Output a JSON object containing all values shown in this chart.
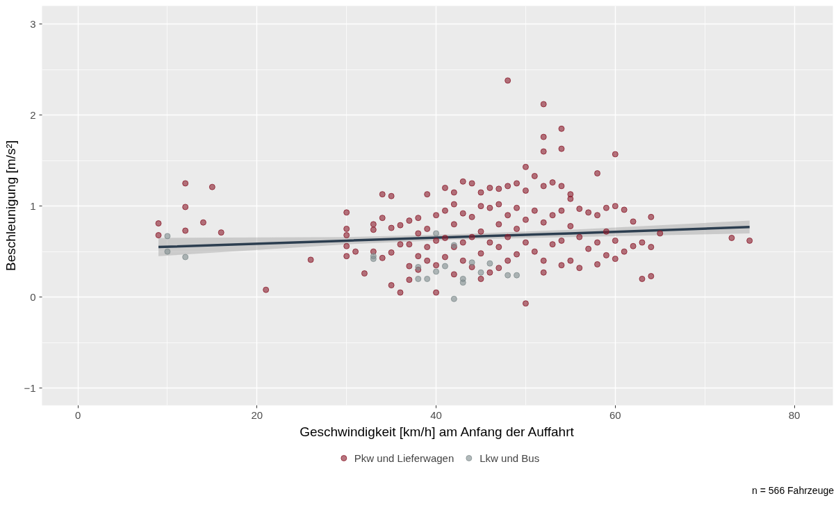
{
  "chart_data": {
    "type": "scatter",
    "xlabel": "Geschwindigkeit [km/h] am Anfang der Auffahrt",
    "ylabel": "Beschleunigung [m/s²]",
    "annotations": [
      "n = 566 Fahrzeuge"
    ],
    "xlim": [
      -4,
      84.3
    ],
    "ylim": [
      -1.19,
      3.2
    ],
    "xticks": [
      0,
      20,
      40,
      60,
      80
    ],
    "yticks": [
      -1,
      0,
      1,
      2,
      3
    ],
    "grid": true,
    "legend": "bottom",
    "marker": "circle",
    "series": [
      {
        "name": "Pkw und Lieferwagen",
        "color": "#8b1a2b",
        "x": [
          9,
          9,
          12,
          12,
          12,
          14,
          15,
          16,
          21,
          26,
          30,
          30,
          30,
          30,
          30,
          31,
          32,
          33,
          33,
          33,
          34,
          34,
          34,
          35,
          35,
          35,
          35,
          36,
          36,
          36,
          37,
          37,
          37,
          37,
          38,
          38,
          38,
          38,
          39,
          39,
          39,
          39,
          40,
          40,
          40,
          40,
          41,
          41,
          41,
          41,
          42,
          42,
          42,
          42,
          42,
          43,
          43,
          43,
          43,
          44,
          44,
          44,
          44,
          45,
          45,
          45,
          45,
          45,
          46,
          46,
          46,
          46,
          47,
          47,
          47,
          47,
          47,
          48,
          48,
          48,
          48,
          48,
          49,
          49,
          49,
          49,
          50,
          50,
          50,
          50,
          50,
          51,
          51,
          51,
          52,
          52,
          52,
          52,
          52,
          52,
          52,
          53,
          53,
          53,
          54,
          54,
          54,
          54,
          54,
          54,
          55,
          55,
          55,
          55,
          56,
          56,
          56,
          57,
          57,
          58,
          58,
          58,
          58,
          59,
          59,
          59,
          60,
          60,
          60,
          60,
          61,
          61,
          62,
          62,
          63,
          63,
          64,
          64,
          64,
          65,
          73,
          75
        ],
        "values": [
          0.81,
          0.68,
          1.25,
          0.99,
          0.73,
          0.82,
          1.21,
          0.71,
          0.08,
          0.41,
          0.93,
          0.75,
          0.68,
          0.56,
          0.45,
          0.5,
          0.26,
          0.8,
          0.74,
          0.5,
          0.87,
          0.43,
          1.13,
          1.11,
          0.76,
          0.49,
          0.13,
          0.05,
          0.58,
          0.79,
          0.84,
          0.58,
          0.34,
          0.19,
          0.87,
          0.7,
          0.45,
          0.3,
          1.13,
          0.75,
          0.55,
          0.4,
          0.05,
          0.9,
          0.62,
          0.35,
          1.2,
          0.95,
          0.65,
          0.44,
          1.15,
          1.02,
          0.8,
          0.55,
          0.25,
          1.27,
          0.92,
          0.6,
          0.4,
          1.25,
          0.88,
          0.66,
          0.33,
          1.15,
          1.0,
          0.72,
          0.48,
          0.2,
          1.2,
          0.98,
          0.6,
          0.27,
          1.19,
          1.02,
          0.8,
          0.55,
          0.32,
          2.38,
          1.22,
          0.9,
          0.66,
          0.4,
          1.25,
          0.98,
          0.75,
          0.47,
          1.43,
          1.17,
          0.85,
          0.6,
          -0.07,
          1.33,
          0.95,
          0.5,
          2.12,
          1.76,
          1.6,
          1.22,
          0.82,
          0.4,
          0.27,
          1.26,
          0.9,
          0.58,
          1.85,
          1.63,
          1.22,
          0.95,
          0.62,
          0.35,
          1.13,
          1.08,
          0.78,
          0.4,
          0.97,
          0.66,
          0.32,
          0.93,
          0.53,
          1.36,
          0.9,
          0.6,
          0.36,
          0.98,
          0.72,
          0.46,
          1.57,
          1.0,
          0.62,
          0.42,
          0.96,
          0.5,
          0.83,
          0.56,
          0.2,
          0.6,
          0.88,
          0.55,
          0.23,
          0.7,
          0.65,
          0.62
        ]
      },
      {
        "name": "Lkw und Bus",
        "color": "#7f8c8d",
        "x": [
          10,
          10,
          12,
          33,
          33,
          38,
          38,
          39,
          40,
          41,
          42,
          43,
          43,
          42,
          44,
          45,
          46,
          48,
          49,
          40
        ],
        "values": [
          0.67,
          0.5,
          0.44,
          0.45,
          0.42,
          0.2,
          0.33,
          0.2,
          0.28,
          0.34,
          -0.02,
          0.2,
          0.16,
          0.57,
          0.38,
          0.27,
          0.37,
          0.24,
          0.24,
          0.7
        ]
      },
      {
        "type": "line",
        "marker": "none",
        "color": "#2c3e50",
        "x": [
          9,
          30,
          42,
          55,
          75
        ],
        "values": [
          0.55,
          0.62,
          0.66,
          0.7,
          0.77
        ],
        "lower": [
          0.45,
          0.58,
          0.63,
          0.66,
          0.7
        ],
        "upper": [
          0.65,
          0.66,
          0.69,
          0.74,
          0.84
        ]
      }
    ]
  }
}
